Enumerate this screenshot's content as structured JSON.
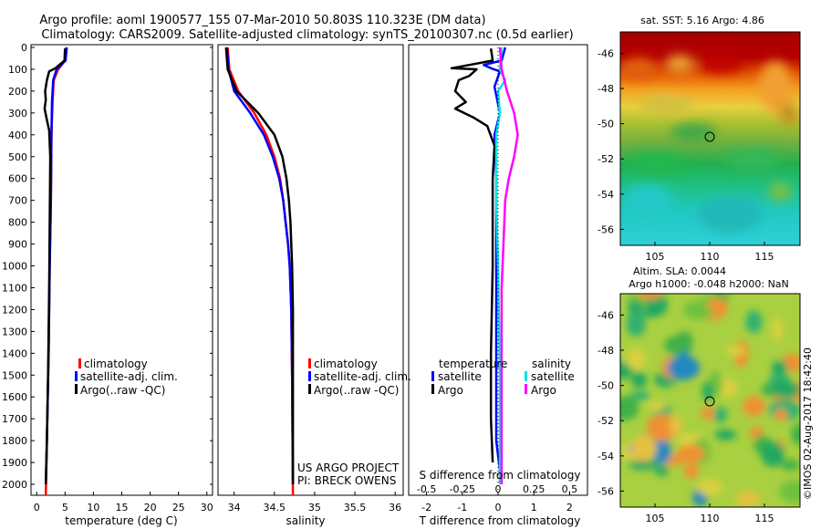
{
  "figure": {
    "title_line1": "Argo profile: aoml 1900577_155 07-Mar-2010 50.803S 110.323E (DM data)",
    "title_line2": "Climatology: CARS2009. Satellite-adjusted climatology: synTS_20100307.nc (0.5d earlier)",
    "project_line1": "US ARGO PROJECT",
    "project_line2": "PI: BRECK OWENS",
    "stamp": "©IMOS 02-Aug-2017 18:42:40"
  },
  "colors": {
    "climatology": "#ff0000",
    "satellite_adj": "#0000ff",
    "argo": "#000000",
    "sal_satellite": "#00e5e5",
    "sal_argo": "#ff00ff"
  },
  "chart_data": [
    {
      "type": "line",
      "panel": "temperature",
      "xlabel": "temperature (deg C)",
      "xlim": [
        -1,
        31
      ],
      "ylim": [
        2050,
        0
      ],
      "xticks": [
        0,
        5,
        10,
        15,
        20,
        25,
        30
      ],
      "yticks": [
        0,
        100,
        200,
        300,
        400,
        500,
        600,
        700,
        800,
        900,
        1000,
        1100,
        1200,
        1300,
        1400,
        1500,
        1600,
        1700,
        1800,
        1900,
        2000
      ],
      "legend": [
        "climatology",
        "satellite-adj. clim.",
        "Argo(..raw -QC)"
      ],
      "series": [
        {
          "name": "climatology",
          "color_key": "climatology",
          "points": [
            [
              5.2,
              0
            ],
            [
              5.0,
              60
            ],
            [
              3.8,
              100
            ],
            [
              3.0,
              150
            ],
            [
              2.8,
              250
            ],
            [
              2.6,
              400
            ],
            [
              2.5,
              700
            ],
            [
              2.3,
              1000
            ],
            [
              2.1,
              1400
            ],
            [
              1.8,
              1800
            ],
            [
              1.6,
              2050
            ]
          ]
        },
        {
          "name": "satellite-adj. clim.",
          "color_key": "satellite_adj",
          "points": [
            [
              5.3,
              0
            ],
            [
              5.1,
              60
            ],
            [
              3.5,
              100
            ],
            [
              2.9,
              150
            ],
            [
              2.7,
              250
            ],
            [
              2.6,
              400
            ],
            [
              2.5,
              700
            ],
            [
              2.3,
              1000
            ],
            [
              2.1,
              1400
            ],
            [
              1.8,
              1800
            ],
            [
              1.6,
              2000
            ]
          ]
        },
        {
          "name": "Argo(..raw -QC)",
          "color_key": "argo",
          "points": [
            [
              5.0,
              5
            ],
            [
              4.9,
              60
            ],
            [
              3.3,
              95
            ],
            [
              2.2,
              110
            ],
            [
              1.8,
              150
            ],
            [
              1.5,
              200
            ],
            [
              1.6,
              240
            ],
            [
              1.4,
              280
            ],
            [
              1.7,
              320
            ],
            [
              2.2,
              380
            ],
            [
              2.4,
              500
            ],
            [
              2.3,
              800
            ],
            [
              2.2,
              1100
            ],
            [
              2.0,
              1500
            ],
            [
              1.8,
              1800
            ],
            [
              1.6,
              2000
            ]
          ]
        }
      ]
    },
    {
      "type": "line",
      "panel": "salinity",
      "xlabel": "salinity",
      "xlim": [
        33.8,
        36.1
      ],
      "ylim": [
        2050,
        0
      ],
      "xticks": [
        34,
        34.5,
        35,
        35.5,
        36
      ],
      "xticklabels": [
        "34",
        "34.5",
        "35",
        "35.5",
        "36"
      ],
      "legend": [
        "climatology",
        "satellite-adj. clim.",
        "Argo(..raw -QC)"
      ],
      "series": [
        {
          "name": "climatology",
          "color_key": "climatology",
          "points": [
            [
              33.92,
              0
            ],
            [
              33.94,
              100
            ],
            [
              34.05,
              200
            ],
            [
              34.25,
              300
            ],
            [
              34.4,
              400
            ],
            [
              34.5,
              500
            ],
            [
              34.57,
              600
            ],
            [
              34.61,
              700
            ],
            [
              34.64,
              800
            ],
            [
              34.67,
              900
            ],
            [
              34.69,
              1000
            ],
            [
              34.71,
              1200
            ],
            [
              34.72,
              1500
            ],
            [
              34.73,
              2050
            ]
          ]
        },
        {
          "name": "satellite-adj. clim.",
          "color_key": "satellite_adj",
          "points": [
            [
              33.91,
              0
            ],
            [
              33.93,
              100
            ],
            [
              34.0,
              200
            ],
            [
              34.2,
              300
            ],
            [
              34.37,
              400
            ],
            [
              34.48,
              500
            ],
            [
              34.56,
              600
            ],
            [
              34.61,
              700
            ],
            [
              34.64,
              800
            ],
            [
              34.67,
              900
            ],
            [
              34.69,
              1000
            ],
            [
              34.71,
              1200
            ],
            [
              34.72,
              1500
            ],
            [
              34.73,
              2000
            ]
          ]
        },
        {
          "name": "Argo(..raw -QC)",
          "color_key": "argo",
          "points": [
            [
              33.9,
              0
            ],
            [
              33.92,
              100
            ],
            [
              34.03,
              200
            ],
            [
              34.3,
              300
            ],
            [
              34.5,
              400
            ],
            [
              34.6,
              500
            ],
            [
              34.65,
              600
            ],
            [
              34.68,
              700
            ],
            [
              34.7,
              800
            ],
            [
              34.71,
              900
            ],
            [
              34.72,
              1000
            ],
            [
              34.73,
              1200
            ],
            [
              34.73,
              2000
            ]
          ]
        }
      ]
    },
    {
      "type": "line",
      "panel": "difference",
      "xlabel": "T difference from climatology",
      "xlabel_top": "S difference from climatology",
      "xlim": [
        -2.5,
        2.5
      ],
      "ylim": [
        2050,
        0
      ],
      "xticks": [
        -2,
        -1,
        0,
        1,
        2
      ],
      "s_xticklabels": [
        "-0.5",
        "-0.25",
        "0",
        "0.25",
        "0.5"
      ],
      "legend_titles": [
        "temperature",
        "salinity"
      ],
      "legend": [
        "satellite",
        "Argo",
        "satellite",
        "Argo"
      ],
      "series": [
        {
          "name": "temperature satellite",
          "color_key": "satellite_adj",
          "points": [
            [
              0.2,
              0
            ],
            [
              0.1,
              60
            ],
            [
              -0.4,
              80
            ],
            [
              -0.2,
              95
            ],
            [
              0.05,
              110
            ],
            [
              -0.1,
              180
            ],
            [
              0.05,
              300
            ],
            [
              -0.1,
              400
            ],
            [
              -0.05,
              600
            ],
            [
              -0.05,
              1000
            ],
            [
              -0.05,
              1500
            ],
            [
              -0.05,
              1800
            ],
            [
              0.1,
              2000
            ]
          ]
        },
        {
          "name": "temperature Argo",
          "color_key": "argo",
          "points": [
            [
              -0.2,
              5
            ],
            [
              -0.15,
              60
            ],
            [
              -0.8,
              80
            ],
            [
              -1.3,
              95
            ],
            [
              -0.6,
              100
            ],
            [
              -0.8,
              130
            ],
            [
              -1.1,
              150
            ],
            [
              -1.2,
              200
            ],
            [
              -0.9,
              250
            ],
            [
              -1.2,
              280
            ],
            [
              -0.7,
              320
            ],
            [
              -0.3,
              360
            ],
            [
              -0.1,
              450
            ],
            [
              -0.15,
              600
            ],
            [
              -0.15,
              1000
            ],
            [
              -0.2,
              1400
            ],
            [
              -0.2,
              1700
            ],
            [
              -0.15,
              1900
            ]
          ]
        },
        {
          "name": "salinity satellite",
          "color_key": "sal_satellite",
          "points": [
            [
              0.1,
              0
            ],
            [
              0.05,
              100
            ],
            [
              0.2,
              150
            ],
            [
              0.0,
              200
            ],
            [
              0.05,
              300
            ],
            [
              -0.05,
              400
            ],
            [
              -0.05,
              700
            ],
            [
              0.0,
              1000
            ],
            [
              0.05,
              1500
            ],
            [
              0.05,
              2000
            ]
          ]
        },
        {
          "name": "salinity Argo",
          "color_key": "sal_argo",
          "points": [
            [
              0.05,
              0
            ],
            [
              0.1,
              100
            ],
            [
              0.25,
              200
            ],
            [
              0.45,
              300
            ],
            [
              0.55,
              400
            ],
            [
              0.45,
              500
            ],
            [
              0.3,
              600
            ],
            [
              0.2,
              700
            ],
            [
              0.15,
              900
            ],
            [
              0.1,
              1100
            ],
            [
              0.1,
              1500
            ],
            [
              0.1,
              1800
            ],
            [
              0.1,
              2000
            ]
          ]
        }
      ]
    }
  ],
  "maps": [
    {
      "title": "sat. SST: 5.16 Argo: 4.86",
      "yticks": [
        "-46",
        "-48",
        "-50",
        "-52",
        "-54",
        "-56"
      ],
      "xticks": [
        "105",
        "110",
        "115"
      ],
      "marker": "Argo float position"
    },
    {
      "title_line1": "Altim. SLA: 0.0044",
      "title_line2": "Argo h1000: -0.048 h2000: NaN",
      "yticks": [
        "-46",
        "-48",
        "-50",
        "-52",
        "-54",
        "-56"
      ],
      "xticks": [
        "105",
        "110",
        "115"
      ],
      "marker": "Argo float position"
    }
  ]
}
